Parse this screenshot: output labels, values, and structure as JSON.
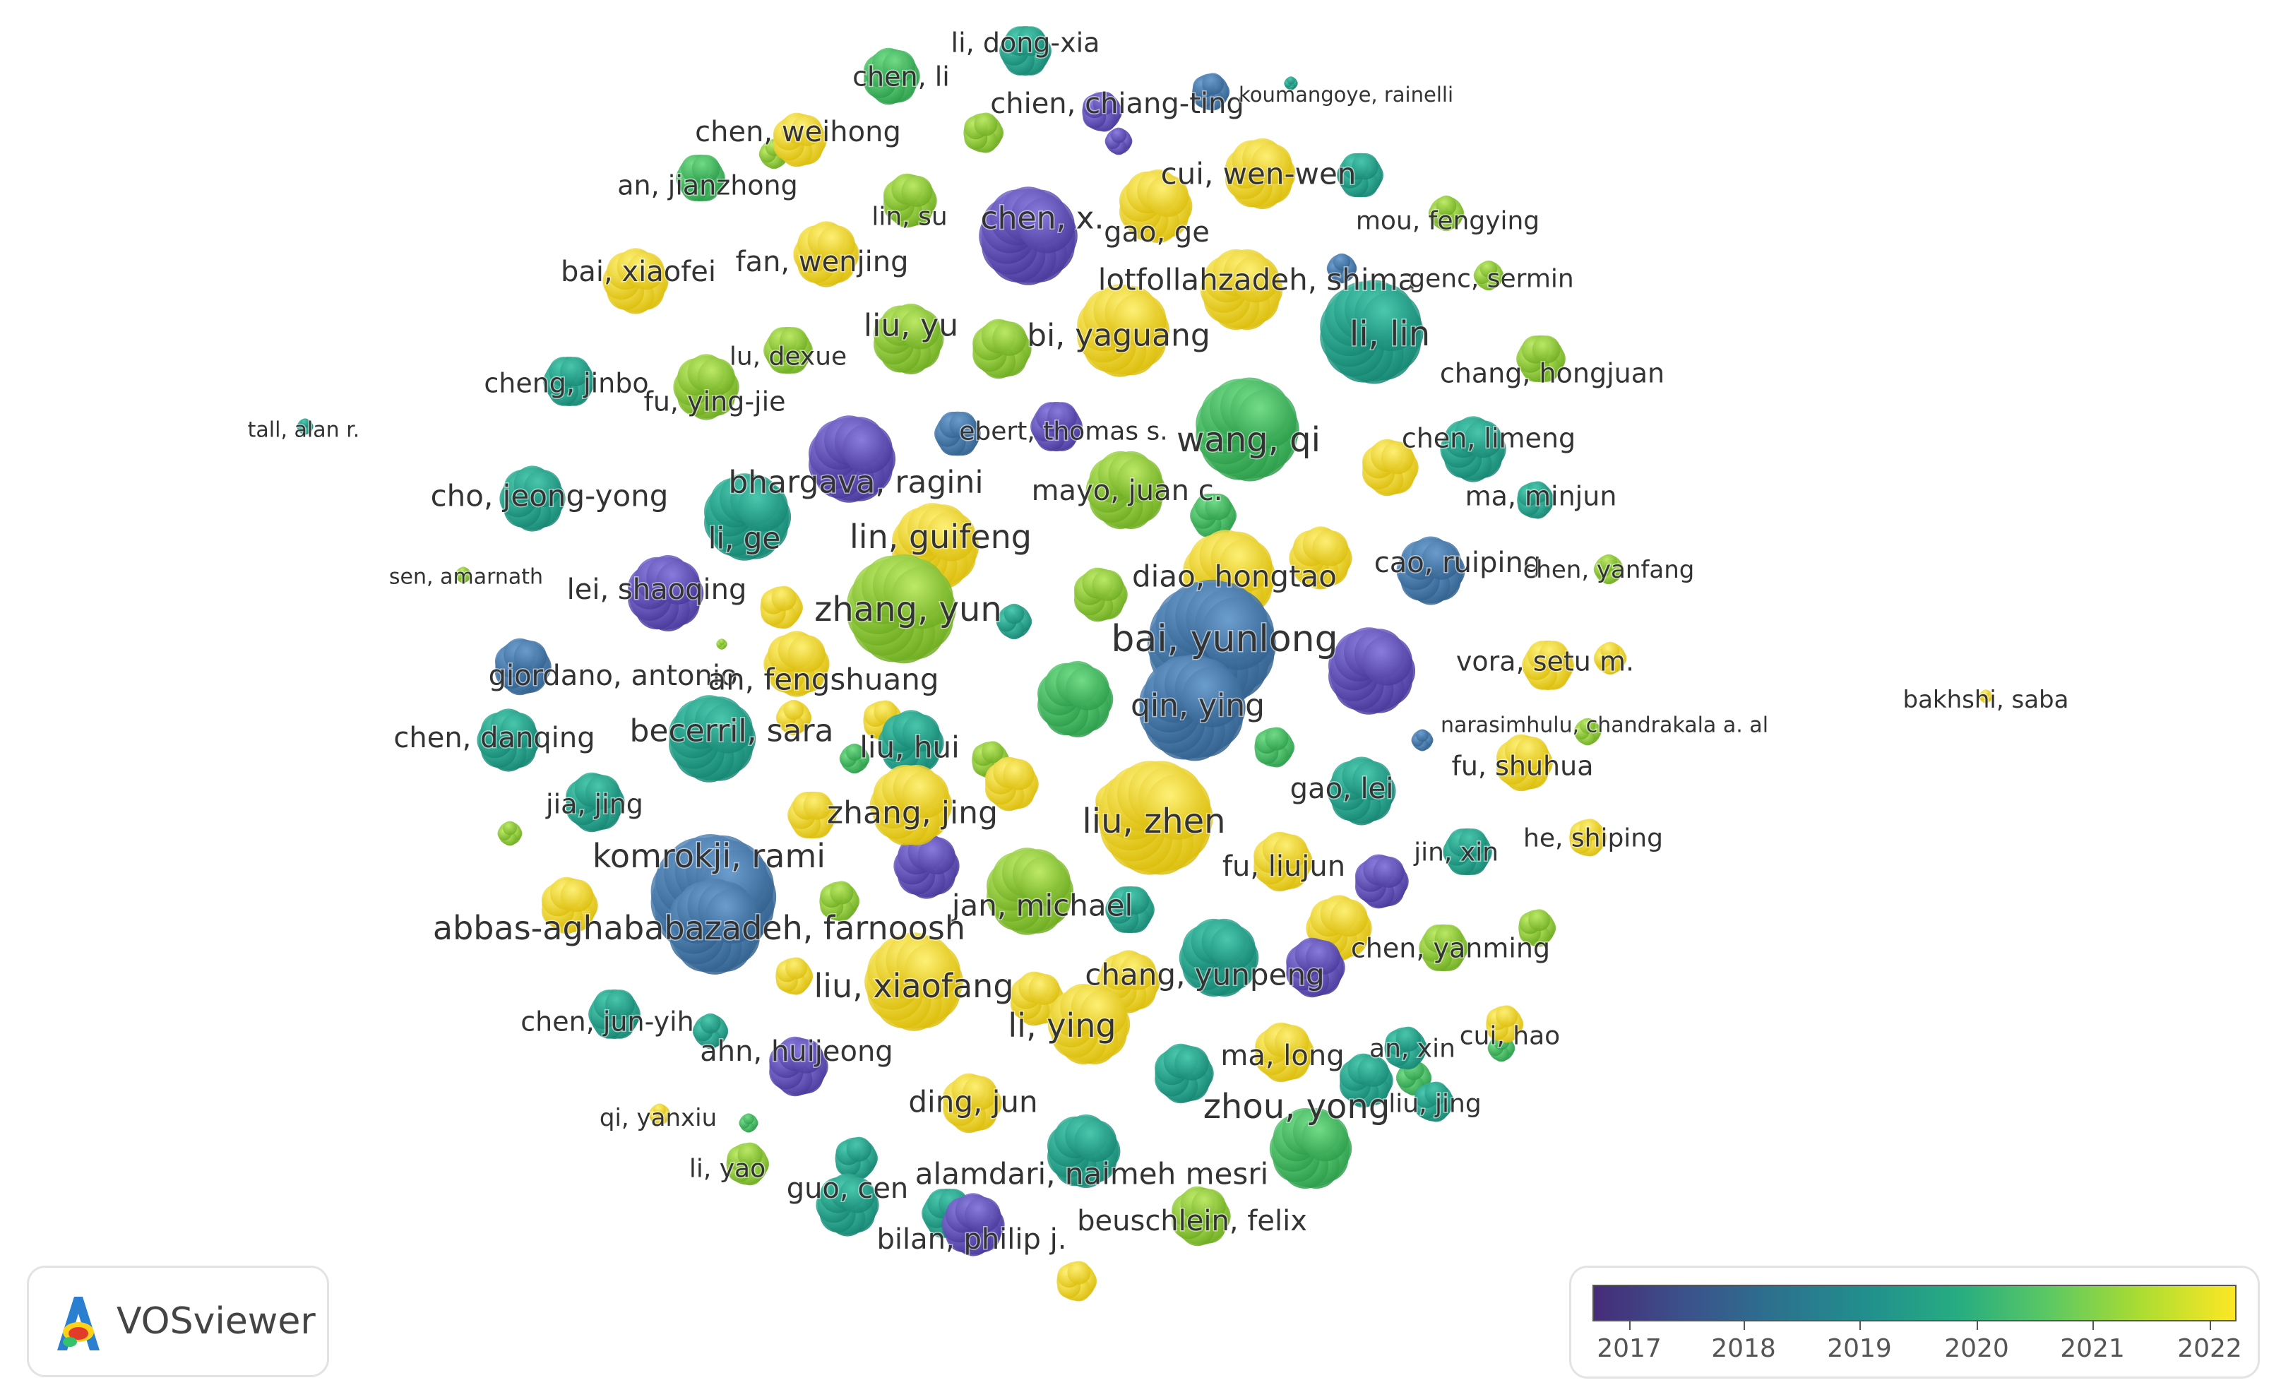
{
  "app": {
    "name": "VOSviewer"
  },
  "legend": {
    "ticks": [
      "2017",
      "2018",
      "2019",
      "2020",
      "2021",
      "2022"
    ],
    "colors": [
      "#472c7a",
      "#3b518b",
      "#2c718e",
      "#21908d",
      "#27ad81",
      "#5cc863",
      "#aadc32",
      "#fde725"
    ]
  },
  "palette": {
    "purple": "#5b4bb0",
    "blue": "#3f72a8",
    "teal": "#23a08c",
    "green": "#3fbd62",
    "lime": "#8fcf37",
    "yellow": "#f2d51d"
  },
  "nodes": [
    {
      "label": "li, dong-xia",
      "color": "teal"
    },
    {
      "label": "chen, li",
      "color": "green"
    },
    {
      "label": "chien, chiang-ting",
      "color": "purple"
    },
    {
      "label": "koumangoye, rainelli",
      "color": "teal"
    },
    {
      "label": "chen, weihong",
      "color": "yellow"
    },
    {
      "label": "cui, wen-wen",
      "color": "yellow"
    },
    {
      "label": "an, jianzhong",
      "color": "green"
    },
    {
      "label": "lin, su",
      "color": "lime"
    },
    {
      "label": "chen, x.",
      "color": "purple"
    },
    {
      "label": "gao, ge",
      "color": "yellow"
    },
    {
      "label": "mou, fengying",
      "color": "lime"
    },
    {
      "label": "bai, xiaofei",
      "color": "yellow"
    },
    {
      "label": "fan, wenjing",
      "color": "yellow"
    },
    {
      "label": "lotfollahzadeh, shima",
      "color": "yellow"
    },
    {
      "label": "genc, sermin",
      "color": "lime"
    },
    {
      "label": "liu, yu",
      "color": "lime"
    },
    {
      "label": "bi, yaguang",
      "color": "yellow"
    },
    {
      "label": "li, lin",
      "color": "teal"
    },
    {
      "label": "lu, dexue",
      "color": "lime"
    },
    {
      "label": "cheng, jinbo",
      "color": "teal"
    },
    {
      "label": "chang, hongjuan",
      "color": "lime"
    },
    {
      "label": "fu, ying-jie",
      "color": "lime"
    },
    {
      "label": "tall, alan r.",
      "color": "teal"
    },
    {
      "label": "ebert, thomas s.",
      "color": "purple"
    },
    {
      "label": "wang, qi",
      "color": "green"
    },
    {
      "label": "chen, limeng",
      "color": "teal"
    },
    {
      "label": "bhargava, ragini",
      "color": "purple"
    },
    {
      "label": "cho, jeong-yong",
      "color": "teal"
    },
    {
      "label": "mayo, juan c.",
      "color": "lime"
    },
    {
      "label": "ma, minjun",
      "color": "teal"
    },
    {
      "label": "li, ge",
      "color": "teal"
    },
    {
      "label": "lin, guifeng",
      "color": "yellow"
    },
    {
      "label": "sen, amarnath",
      "color": "lime"
    },
    {
      "label": "cao, ruiping",
      "color": "blue"
    },
    {
      "label": "chen, yanfang",
      "color": "lime"
    },
    {
      "label": "lei, shaoqing",
      "color": "purple"
    },
    {
      "label": "diao, hongtao",
      "color": "yellow"
    },
    {
      "label": "zhang, yun",
      "color": "lime"
    },
    {
      "label": "bai, yunlong",
      "color": "blue"
    },
    {
      "label": "giordano, antonio",
      "color": "purple"
    },
    {
      "label": "an, fengshuang",
      "color": "yellow"
    },
    {
      "label": "vora, setu m.",
      "color": "yellow"
    },
    {
      "label": "qin, ying",
      "color": "blue"
    },
    {
      "label": "chen, danqing",
      "color": "teal"
    },
    {
      "label": "becerril, sara",
      "color": "teal"
    },
    {
      "label": "liu, hui",
      "color": "teal"
    },
    {
      "label": "narasimhulu, chandrakala a. al",
      "color": "lime"
    },
    {
      "label": "bakhshi, saba",
      "color": "yellow"
    },
    {
      "label": "fu, shuhua",
      "color": "yellow"
    },
    {
      "label": "gao, lei",
      "color": "teal"
    },
    {
      "label": "jia, jing",
      "color": "teal"
    },
    {
      "label": "zhang, jing",
      "color": "yellow"
    },
    {
      "label": "liu, zhen",
      "color": "yellow"
    },
    {
      "label": "komrokji, rami",
      "color": "blue"
    },
    {
      "label": "jin, xin",
      "color": "teal"
    },
    {
      "label": "he, shiping",
      "color": "yellow"
    },
    {
      "label": "fu, liujun",
      "color": "yellow"
    },
    {
      "label": "jan, michael",
      "color": "lime"
    },
    {
      "label": "abbas-aghababazadeh, farnoosh",
      "color": "blue"
    },
    {
      "label": "chen, yanming",
      "color": "lime"
    },
    {
      "label": "chang, yunpeng",
      "color": "teal"
    },
    {
      "label": "liu, xiaofang",
      "color": "yellow"
    },
    {
      "label": "chen, jun-yih",
      "color": "teal"
    },
    {
      "label": "li, ying",
      "color": "yellow"
    },
    {
      "label": "ahn, huijeong",
      "color": "purple"
    },
    {
      "label": "an, xin",
      "color": "teal"
    },
    {
      "label": "cui, hao",
      "color": "yellow"
    },
    {
      "label": "ma, long",
      "color": "yellow"
    },
    {
      "label": "ding, jun",
      "color": "yellow"
    },
    {
      "label": "zhou, yong",
      "color": "green"
    },
    {
      "label": "liu, jing",
      "color": "teal"
    },
    {
      "label": "qi, yanxiu",
      "color": "yellow"
    },
    {
      "label": "li, yao",
      "color": "lime"
    },
    {
      "label": "alamdari, naimeh mesri",
      "color": "teal"
    },
    {
      "label": "guo, cen",
      "color": "teal"
    },
    {
      "label": "beuschlein, felix",
      "color": "lime"
    },
    {
      "label": "bilan, philip j.",
      "color": "purple"
    }
  ]
}
